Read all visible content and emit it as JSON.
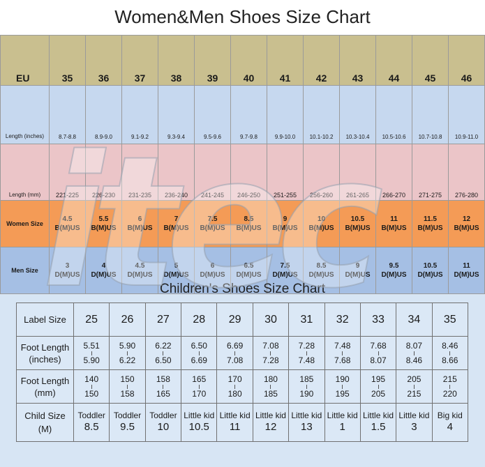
{
  "adult": {
    "title": "Women&Men Shoes Size Chart",
    "eu_label": "EU",
    "sizes": [
      "35",
      "36",
      "37",
      "38",
      "39",
      "40",
      "41",
      "42",
      "43",
      "44",
      "45",
      "46"
    ],
    "length_in_label": "Length (inches)",
    "length_in": [
      "8.7-8.8",
      "8.9-9.0",
      "9.1-9.2",
      "9.3-9.4",
      "9.5-9.6",
      "9.7-9.8",
      "9.9-10.0",
      "10.1-10.2",
      "10.3-10.4",
      "10.5-10.6",
      "10.7-10.8",
      "10.9-11.0"
    ],
    "length_mm_label": "Length (mm)",
    "length_mm": [
      "221-225",
      "226-230",
      "231-235",
      "236-240",
      "241-245",
      "246-250",
      "251-255",
      "256-260",
      "261-265",
      "266-270",
      "271-275",
      "276-280"
    ],
    "women_label": "Women Size",
    "women": [
      "4.5",
      "5.5",
      "6",
      "7",
      "7.5",
      "8.5",
      "9",
      "10",
      "10.5",
      "11",
      "11.5",
      "12"
    ],
    "women_width": "B(M)US",
    "men_label": "Men Size",
    "men": [
      "3",
      "4",
      "4.5",
      "5",
      "6",
      "6.5",
      "7.5",
      "8.5",
      "9",
      "9.5",
      "10.5",
      "11"
    ],
    "men_width": "D(M)US"
  },
  "children": {
    "title": "Children's Shoes Size Chart",
    "label_size_label": "Label Size",
    "label_sizes": [
      "25",
      "26",
      "27",
      "28",
      "29",
      "30",
      "31",
      "32",
      "33",
      "34",
      "35"
    ],
    "foot_in_label": "Foot Length (inches)",
    "foot_in": [
      [
        "5.51",
        "5.90"
      ],
      [
        "5.90",
        "6.22"
      ],
      [
        "6.22",
        "6.50"
      ],
      [
        "6.50",
        "6.69"
      ],
      [
        "6.69",
        "7.08"
      ],
      [
        "7.08",
        "7.28"
      ],
      [
        "7.28",
        "7.48"
      ],
      [
        "7.48",
        "7.68"
      ],
      [
        "7.68",
        "8.07"
      ],
      [
        "8.07",
        "8.46"
      ],
      [
        "8.46",
        "8.66"
      ]
    ],
    "foot_mm_label": "Foot Length (mm)",
    "foot_mm": [
      [
        "140",
        "150"
      ],
      [
        "150",
        "158"
      ],
      [
        "158",
        "165"
      ],
      [
        "165",
        "170"
      ],
      [
        "170",
        "180"
      ],
      [
        "180",
        "185"
      ],
      [
        "185",
        "190"
      ],
      [
        "190",
        "195"
      ],
      [
        "195",
        "205"
      ],
      [
        "205",
        "215"
      ],
      [
        "215",
        "220"
      ]
    ],
    "child_size_label": "Child Size (M)",
    "child_sizes": [
      [
        "Toddler",
        "8.5"
      ],
      [
        "Toddler",
        "9.5"
      ],
      [
        "Toddler",
        "10"
      ],
      [
        "Little kid",
        "10.5"
      ],
      [
        "Little kid",
        "11"
      ],
      [
        "Little kid",
        "12"
      ],
      [
        "Little kid",
        "13"
      ],
      [
        "Little kid",
        "1"
      ],
      [
        "Little kid",
        "1.5"
      ],
      [
        "Little kid",
        "3"
      ],
      [
        "Big kid",
        "4"
      ]
    ]
  },
  "watermark": "itec",
  "colors": {
    "eu_row": "#c9bf8f",
    "inch_row": "#c6d8ef",
    "mm_row": "#ebc5c8",
    "women_row": "#f49b56",
    "men_row": "#a5bfe4",
    "kids_bg": "#d7e5f4"
  }
}
